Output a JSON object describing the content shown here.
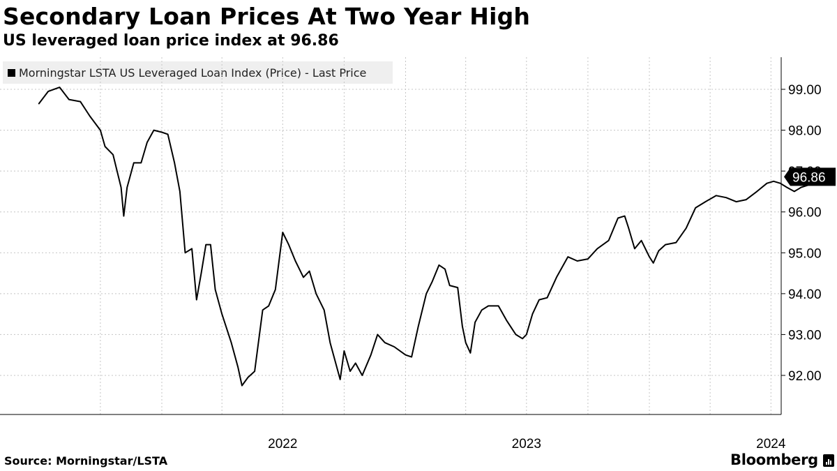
{
  "header": {
    "title": "Secondary Loan Prices At Two Year High",
    "subtitle": "US leveraged loan price index at 96.86"
  },
  "footer": {
    "source": "Source: Morningstar/LSTA",
    "brand": "Bloomberg"
  },
  "chart_data": {
    "type": "line",
    "title": "Secondary Loan Prices At Two Year High",
    "subtitle": "US leveraged loan price index at 96.86",
    "series": [
      {
        "name": "Morningstar LSTA US Leveraged Loan Index (Price) - Last Price",
        "color": "#000000",
        "points": [
          [
            "2021-07-01",
            98.65
          ],
          [
            "2021-07-15",
            98.95
          ],
          [
            "2021-08-01",
            99.05
          ],
          [
            "2021-08-15",
            98.75
          ],
          [
            "2021-09-01",
            98.7
          ],
          [
            "2021-09-15",
            98.35
          ],
          [
            "2021-10-01",
            98.0
          ],
          [
            "2021-10-08",
            97.6
          ],
          [
            "2021-10-20",
            97.4
          ],
          [
            "2021-11-01",
            96.6
          ],
          [
            "2021-11-05",
            95.9
          ],
          [
            "2021-11-10",
            96.6
          ],
          [
            "2021-11-20",
            97.2
          ],
          [
            "2021-12-01",
            97.2
          ],
          [
            "2021-12-10",
            97.7
          ],
          [
            "2021-12-20",
            98.0
          ],
          [
            "2022-01-01",
            97.95
          ],
          [
            "2022-01-10",
            97.9
          ],
          [
            "2022-01-20",
            97.2
          ],
          [
            "2022-01-28",
            96.5
          ],
          [
            "2022-02-05",
            95.0
          ],
          [
            "2022-02-15",
            95.1
          ],
          [
            "2022-02-22",
            93.85
          ],
          [
            "2022-03-01",
            94.5
          ],
          [
            "2022-03-08",
            95.2
          ],
          [
            "2022-03-15",
            95.2
          ],
          [
            "2022-03-22",
            94.1
          ],
          [
            "2022-04-01",
            93.5
          ],
          [
            "2022-04-15",
            92.8
          ],
          [
            "2022-04-25",
            92.2
          ],
          [
            "2022-05-01",
            91.75
          ],
          [
            "2022-05-10",
            91.95
          ],
          [
            "2022-05-20",
            92.1
          ],
          [
            "2022-06-01",
            93.6
          ],
          [
            "2022-06-10",
            93.7
          ],
          [
            "2022-06-20",
            94.1
          ],
          [
            "2022-07-01",
            95.5
          ],
          [
            "2022-07-10",
            95.2
          ],
          [
            "2022-07-20",
            94.8
          ],
          [
            "2022-08-01",
            94.4
          ],
          [
            "2022-08-10",
            94.55
          ],
          [
            "2022-08-20",
            94.0
          ],
          [
            "2022-09-01",
            93.6
          ],
          [
            "2022-09-10",
            92.8
          ],
          [
            "2022-09-25",
            91.9
          ],
          [
            "2022-10-01",
            92.6
          ],
          [
            "2022-10-10",
            92.1
          ],
          [
            "2022-10-18",
            92.3
          ],
          [
            "2022-10-28",
            92.0
          ],
          [
            "2022-11-10",
            92.5
          ],
          [
            "2022-11-20",
            93.0
          ],
          [
            "2022-12-01",
            92.8
          ],
          [
            "2022-12-15",
            92.7
          ],
          [
            "2023-01-01",
            92.5
          ],
          [
            "2023-01-10",
            92.45
          ],
          [
            "2023-01-20",
            93.2
          ],
          [
            "2023-02-01",
            94.0
          ],
          [
            "2023-02-10",
            94.3
          ],
          [
            "2023-02-20",
            94.7
          ],
          [
            "2023-03-01",
            94.6
          ],
          [
            "2023-03-08",
            94.2
          ],
          [
            "2023-03-20",
            94.15
          ],
          [
            "2023-03-27",
            93.2
          ],
          [
            "2023-04-01",
            92.8
          ],
          [
            "2023-04-08",
            92.55
          ],
          [
            "2023-04-15",
            93.3
          ],
          [
            "2023-04-25",
            93.6
          ],
          [
            "2023-05-05",
            93.7
          ],
          [
            "2023-05-20",
            93.7
          ],
          [
            "2023-06-01",
            93.35
          ],
          [
            "2023-06-15",
            93.0
          ],
          [
            "2023-06-25",
            92.9
          ],
          [
            "2023-07-01",
            93.0
          ],
          [
            "2023-07-10",
            93.5
          ],
          [
            "2023-07-20",
            93.85
          ],
          [
            "2023-08-01",
            93.9
          ],
          [
            "2023-08-15",
            94.4
          ],
          [
            "2023-09-01",
            94.9
          ],
          [
            "2023-09-15",
            94.8
          ],
          [
            "2023-10-01",
            94.85
          ],
          [
            "2023-10-15",
            95.1
          ],
          [
            "2023-11-01",
            95.3
          ],
          [
            "2023-11-15",
            95.85
          ],
          [
            "2023-11-25",
            95.9
          ],
          [
            "2023-12-01",
            95.6
          ],
          [
            "2023-12-10",
            95.1
          ],
          [
            "2023-12-20",
            95.3
          ],
          [
            "2024-01-01",
            94.9
          ],
          [
            "2024-01-07",
            94.75
          ],
          [
            "2024-01-15",
            95.05
          ],
          [
            "2024-01-25",
            95.2
          ],
          [
            "2024-02-10",
            95.25
          ],
          [
            "2024-02-25",
            95.6
          ],
          [
            "2024-03-10",
            96.1
          ],
          [
            "2024-03-25",
            96.25
          ],
          [
            "2024-04-10",
            96.4
          ],
          [
            "2024-04-25",
            96.35
          ],
          [
            "2024-05-10",
            96.25
          ],
          [
            "2024-05-25",
            96.3
          ],
          [
            "2024-06-10",
            96.5
          ],
          [
            "2024-06-25",
            96.7
          ],
          [
            "2024-07-05",
            96.75
          ],
          [
            "2024-07-15",
            96.7
          ],
          [
            "2024-07-25",
            96.6
          ],
          [
            "2024-08-05",
            96.5
          ],
          [
            "2024-08-15",
            96.6
          ],
          [
            "2024-08-25",
            96.65
          ],
          [
            "2024-09-01",
            96.86
          ]
        ]
      }
    ],
    "x_ticks": [
      {
        "value": "2021-10-01",
        "label": ""
      },
      {
        "value": "2022-01-01",
        "label": ""
      },
      {
        "value": "2022-04-01",
        "label": ""
      },
      {
        "value": "2022-07-01",
        "label": "2022"
      },
      {
        "value": "2022-10-01",
        "label": ""
      },
      {
        "value": "2023-01-01",
        "label": ""
      },
      {
        "value": "2023-04-01",
        "label": ""
      },
      {
        "value": "2023-07-01",
        "label": "2023"
      },
      {
        "value": "2023-10-01",
        "label": ""
      },
      {
        "value": "2024-01-01",
        "label": ""
      },
      {
        "value": "2024-04-01",
        "label": ""
      },
      {
        "value": "2024-07-01",
        "label": "2024"
      }
    ],
    "y_ticks": [
      92,
      93,
      94,
      95,
      96,
      97,
      98,
      99
    ],
    "y_tick_labels": [
      "92.00",
      "93.00",
      "94.00",
      "95.00",
      "96.00",
      "97.00",
      "98.00",
      "99.00"
    ],
    "xlim": [
      "2021-07-01",
      "2024-11-20"
    ],
    "ylim": [
      91.0,
      99.85
    ],
    "y_axis_side": "right",
    "grid": true,
    "legend_position": "top-left",
    "last_value": 96.86,
    "last_value_label": "96.86"
  }
}
